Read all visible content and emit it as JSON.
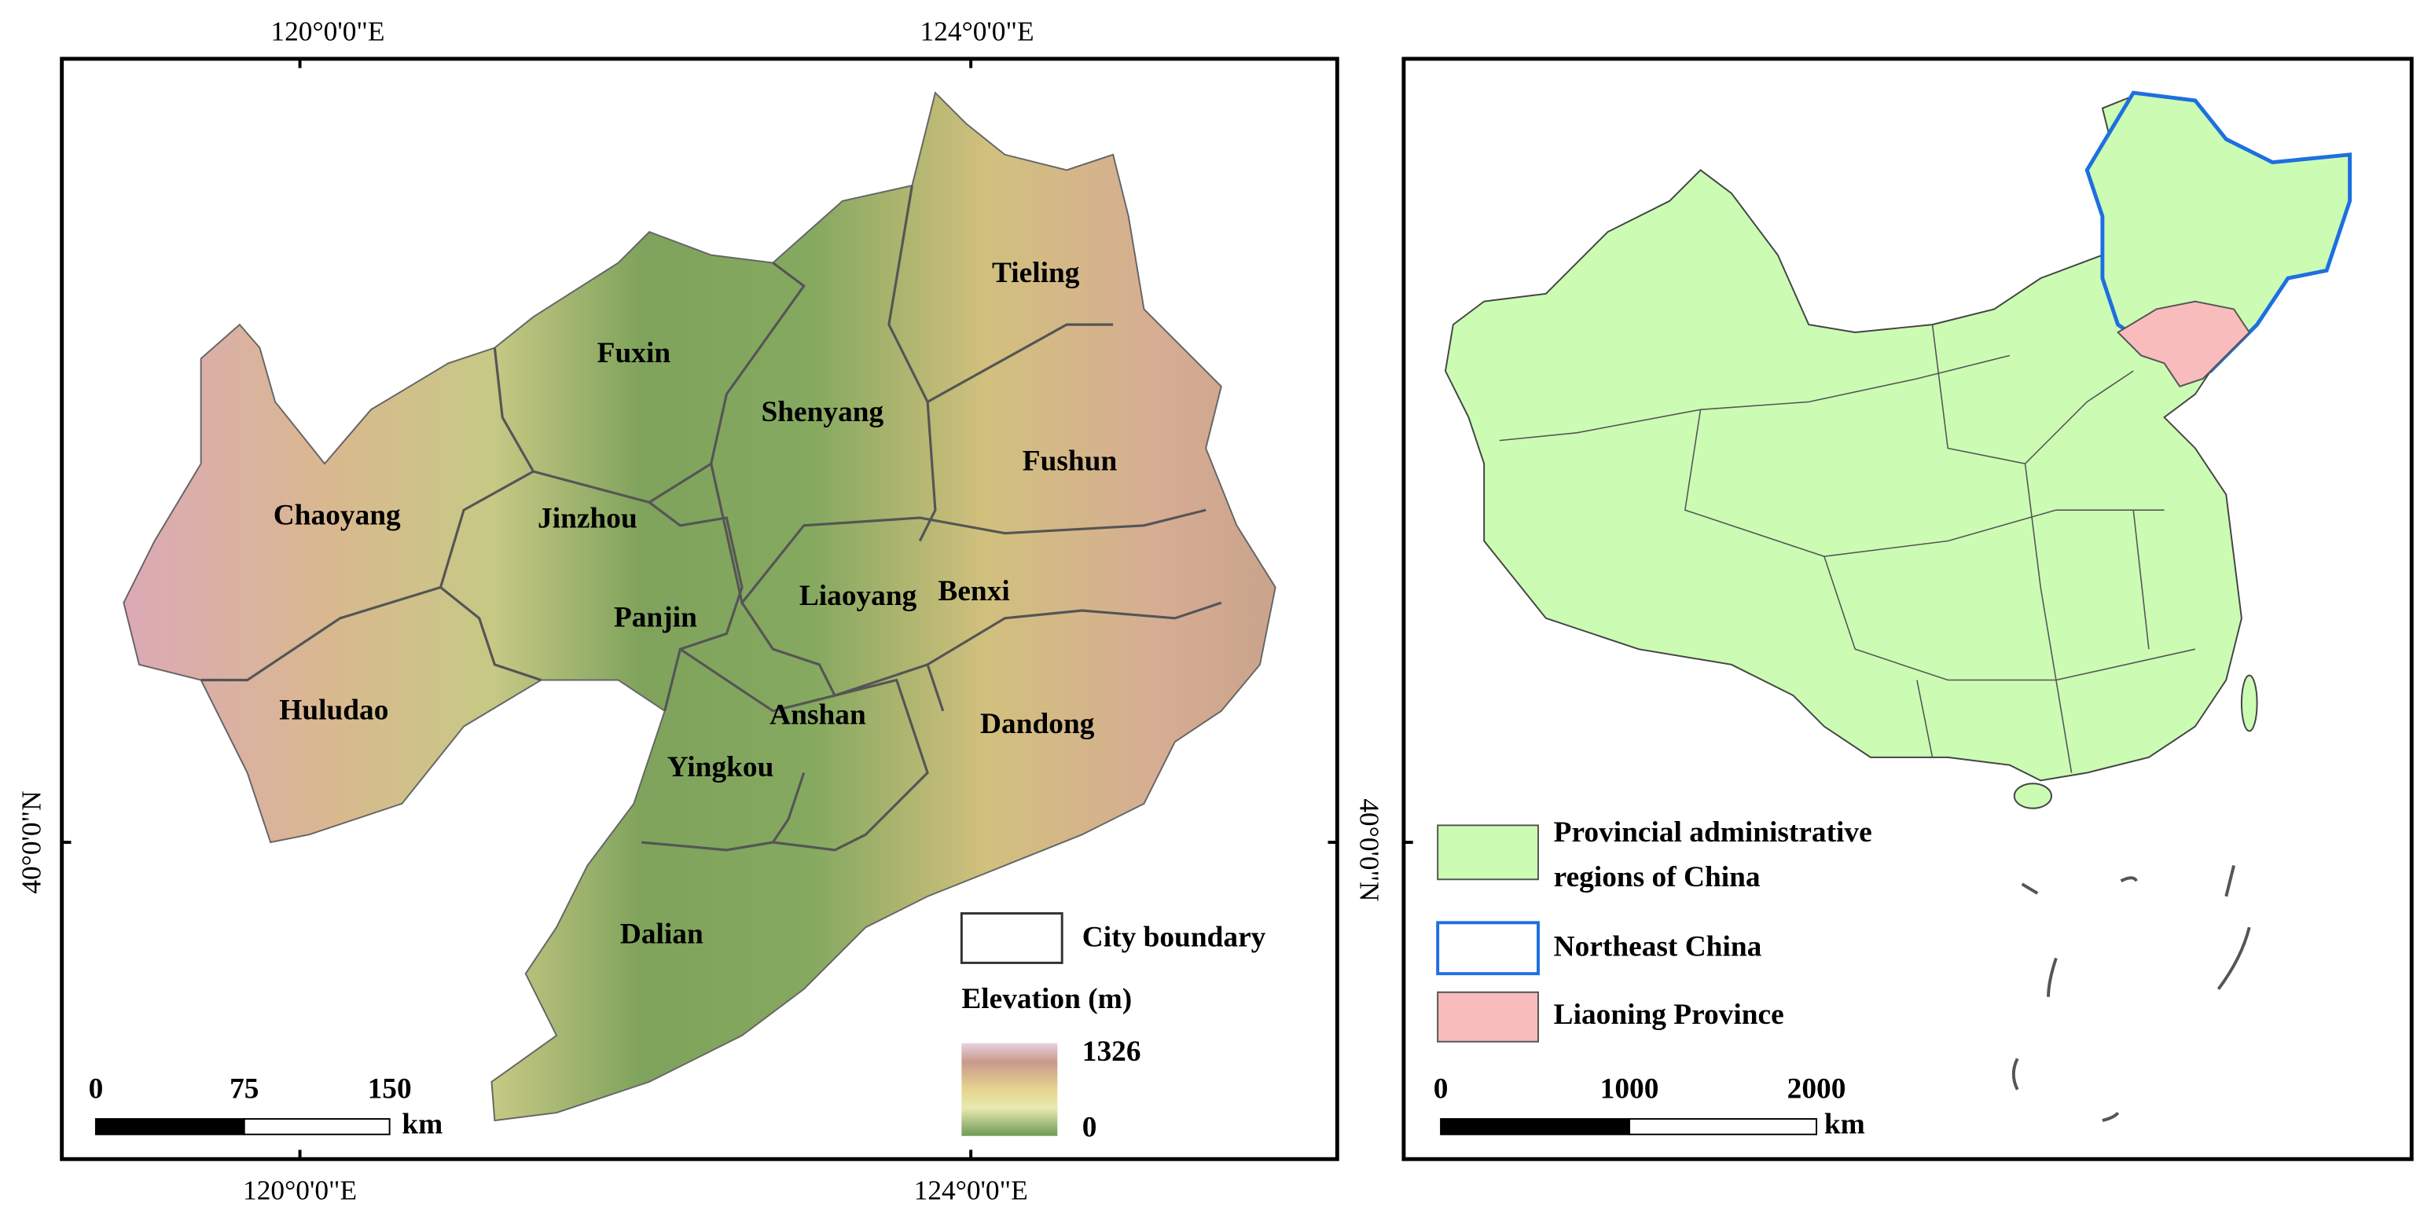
{
  "left_map": {
    "top_longitude_labels": [
      "120°0'0\"E",
      "124°0'0\"E"
    ],
    "bottom_longitude_labels": [
      "120°0'0\"E",
      "124°0'0\"E"
    ],
    "latitude_label": "40°0'0\"N",
    "cities": [
      "Tieling",
      "Fuxin",
      "Shenyang",
      "Fushun",
      "Chaoyang",
      "Jinzhou",
      "Liaoyang",
      "Benxi",
      "Panjin",
      "Huludao",
      "Anshan",
      "Dandong",
      "Yingkou",
      "Dalian"
    ],
    "legend": {
      "boundary": "City boundary",
      "elevation_title": "Elevation (m)",
      "elevation_max": 1326,
      "elevation_min": 0
    },
    "scale_bar": {
      "ticks": [
        0,
        75,
        150
      ],
      "unit": "km"
    }
  },
  "right_map": {
    "latitude_label": "40°0'0\"N",
    "legend": [
      "Provincial administrative",
      "regions of China",
      "Northeast China",
      "Liaoning Province"
    ],
    "scale_bar": {
      "ticks": [
        0,
        1000,
        2000
      ],
      "unit": "km"
    }
  }
}
